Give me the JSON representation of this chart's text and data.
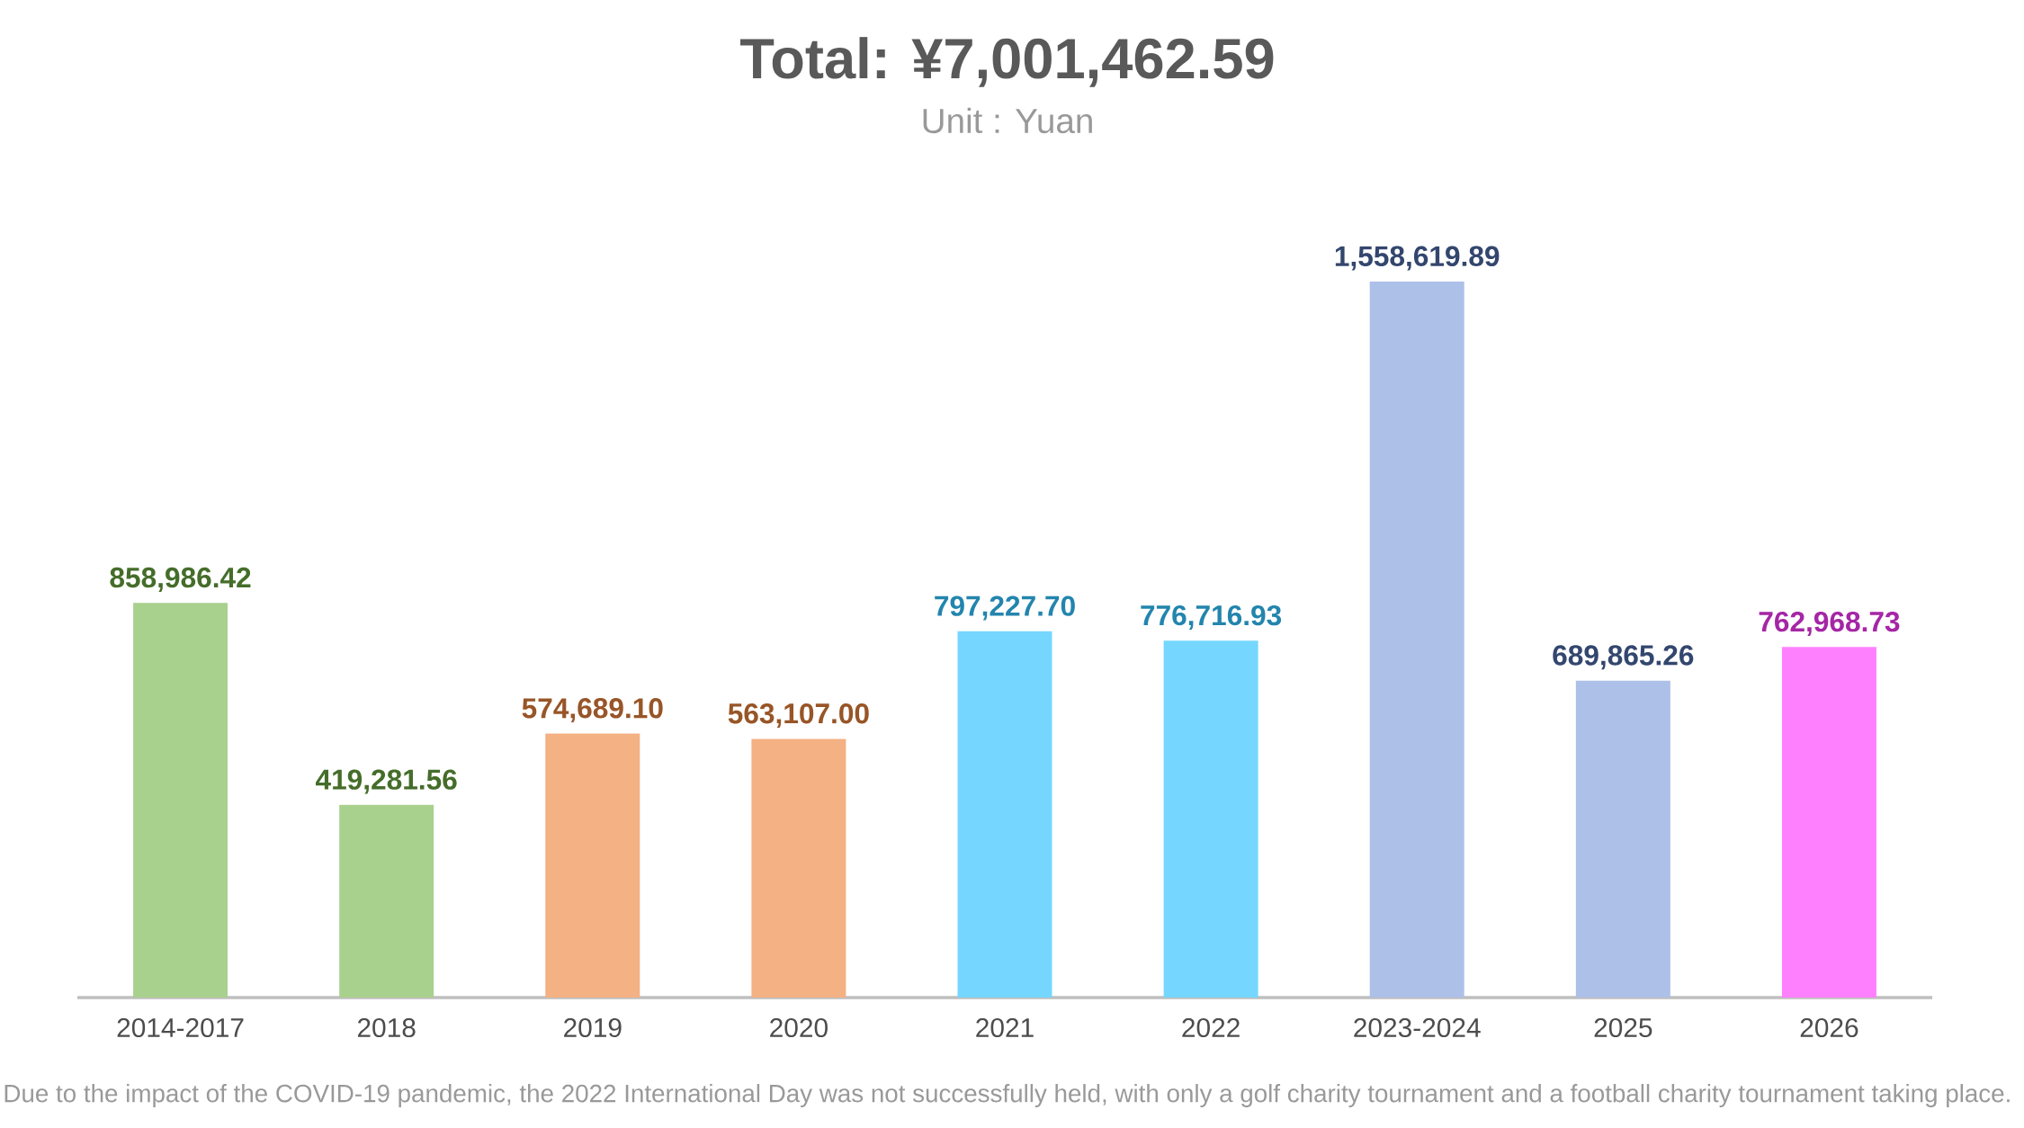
{
  "chart_data": {
    "type": "bar",
    "title": "Total:  ¥7,001,462.59",
    "subtitle": "Unit : Yuan",
    "categories": [
      "2014-2017",
      "2018",
      "2019",
      "2020",
      "2021",
      "2022",
      "2023-2024",
      "2025",
      "2026"
    ],
    "values": [
      858986.42,
      419281.56,
      574689.1,
      563107.0,
      797227.7,
      776716.93,
      1558619.89,
      689865.26,
      762968.73
    ],
    "value_labels": [
      "858,986.42",
      "419,281.56",
      "574,689.10",
      "563,107.00",
      "797,227.70",
      "776,716.93",
      "1,558,619.89",
      "689,865.26",
      "762,968.73"
    ],
    "colors": [
      "#a9d18e",
      "#a9d18e",
      "#f4b183",
      "#f4b183",
      "#75d7ff",
      "#75d7ff",
      "#adc0e8",
      "#adc0e8",
      "#ff80ff"
    ],
    "annotations": [
      "Due to the impact of the COVID-19 pandemic, the 2022 International Day was not successfully held, with only a golf charity tournament and a football charity tournament taking place."
    ]
  }
}
